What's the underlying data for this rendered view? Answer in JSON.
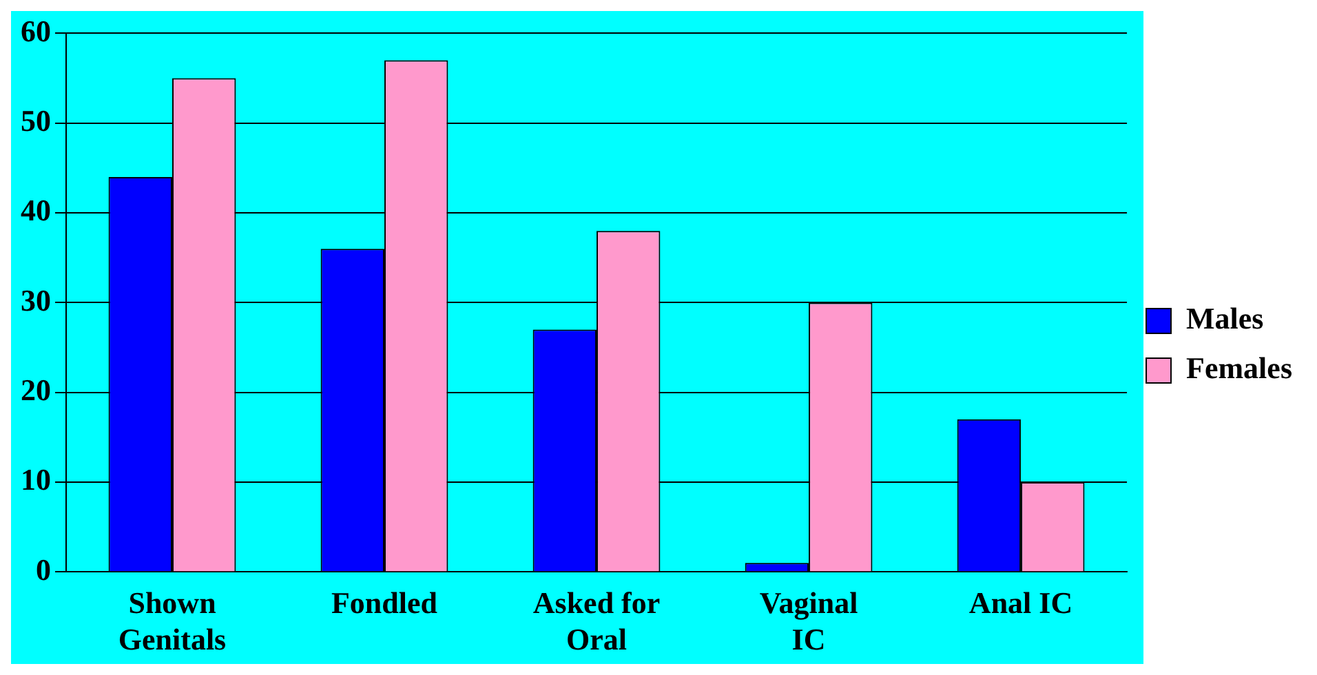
{
  "chart_data": {
    "type": "bar",
    "categories": [
      "Shown Genitals",
      "Fondled",
      "Asked for Oral",
      "Vaginal IC",
      "Anal IC"
    ],
    "series": [
      {
        "name": "Males",
        "color": "#0000ff",
        "values": [
          44,
          36,
          27,
          1,
          17
        ]
      },
      {
        "name": "Females",
        "color": "#ff99cc",
        "values": [
          55,
          57,
          38,
          30,
          10
        ]
      }
    ],
    "ylim": [
      0,
      60
    ],
    "yticks": [
      0,
      10,
      20,
      30,
      40,
      50,
      60
    ],
    "grid": "y",
    "legend": "right"
  }
}
